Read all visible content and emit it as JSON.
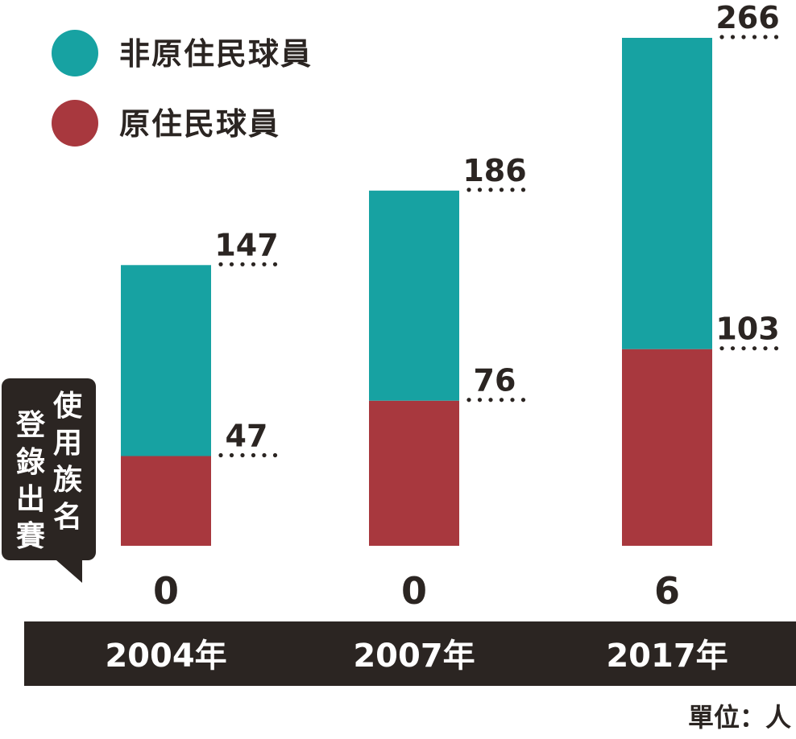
{
  "chart_data": {
    "type": "bar",
    "stacked": true,
    "categories": [
      "2004年",
      "2007年",
      "2017年"
    ],
    "series": [
      {
        "name": "原住民球員",
        "values": [
          47,
          76,
          103
        ],
        "color": "#a8383e"
      },
      {
        "name": "非原住民球員",
        "values": [
          100,
          110,
          163
        ],
        "color": "#17a2a2"
      }
    ],
    "totals": [
      147,
      186,
      266
    ],
    "data_labels": {
      "top": [
        "147",
        "186",
        "266"
      ],
      "indigenous": [
        "47",
        "76",
        "103"
      ]
    },
    "tribal_name_counts": [
      "0",
      "0",
      "6"
    ],
    "ylim": [
      0,
      280
    ],
    "legend_position": "top-left",
    "unit_label": "單位：人",
    "callout_label_lines": [
      "使用族名",
      "登錄出賽"
    ],
    "grid": false
  },
  "colors": {
    "teal": "#17a2a2",
    "red": "#a8383e",
    "dark": "#2b2522"
  }
}
